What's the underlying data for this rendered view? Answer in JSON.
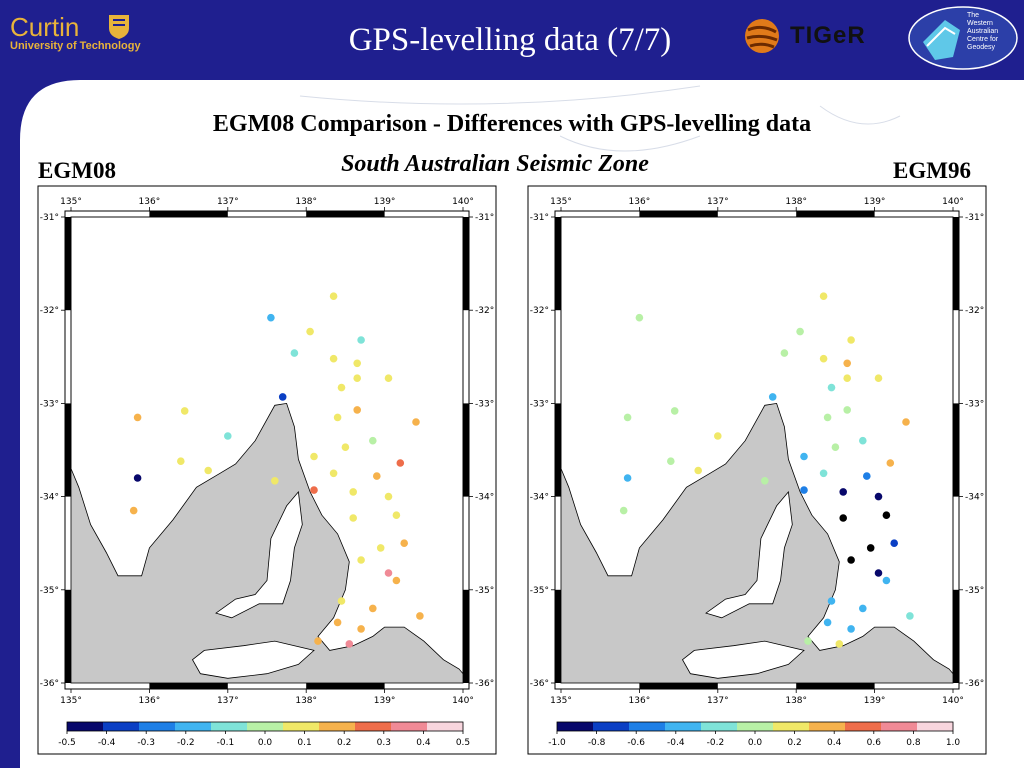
{
  "header": {
    "title": "GPS-levelling data (7/7)",
    "curtin_logo": {
      "name": "Curtin",
      "tagline": "University of Technology"
    },
    "tiger_logo": {
      "name": "TIGeR"
    },
    "wacg_logo": {
      "text_lines": [
        "The",
        "Western",
        "Australian",
        "Centre for",
        "Geodesy"
      ]
    }
  },
  "slide": {
    "heading": "EGM08 Comparison - Differences with GPS-levelling data",
    "subheading": "South Australian Seismic Zone"
  },
  "maps": [
    {
      "label": "EGM08",
      "x_ticks": [
        "135°",
        "136°",
        "137°",
        "138°",
        "139°",
        "140°"
      ],
      "y_ticks": [
        "-31°",
        "-32°",
        "-33°",
        "-34°",
        "-35°",
        "-36°"
      ],
      "colorbar_labels": [
        "-0.5",
        "-0.4",
        "-0.3",
        "-0.2",
        "-0.1",
        "0.0",
        "0.1",
        "0.2",
        "0.3",
        "0.4",
        "0.5"
      ]
    },
    {
      "label": "EGM96",
      "x_ticks": [
        "135°",
        "136°",
        "137°",
        "138°",
        "139°",
        "140°"
      ],
      "y_ticks": [
        "-31°",
        "-32°",
        "-33°",
        "-34°",
        "-35°",
        "-36°"
      ],
      "colorbar_labels": [
        "-1.0",
        "-0.8",
        "-0.6",
        "-0.4",
        "-0.2",
        "0.0",
        "0.2",
        "0.4",
        "0.6",
        "0.8",
        "1.0"
      ]
    }
  ],
  "colors": {
    "header_bg": "#1f1f8f",
    "sea": "#c8c8c8",
    "land": "#ffffff",
    "colorbar": [
      "#08086b",
      "#0b3fc4",
      "#1e7fe6",
      "#40b4f0",
      "#7fe3d8",
      "#b8f0a6",
      "#f0e868",
      "#f6b24c",
      "#ee6d4a",
      "#f08a96",
      "#f8d6de"
    ]
  },
  "chart_data": [
    {
      "type": "scatter",
      "x_range": [
        135,
        140
      ],
      "y_range": [
        -36,
        -31
      ],
      "legend": "bottom colorbar",
      "points": [
        {
          "lon": 138.35,
          "lat": -31.85,
          "v": 0.08
        },
        {
          "lon": 137.55,
          "lat": -32.08,
          "v": -0.18
        },
        {
          "lon": 138.05,
          "lat": -32.23,
          "v": 0.1
        },
        {
          "lon": 138.7,
          "lat": -32.32,
          "v": -0.08
        },
        {
          "lon": 137.85,
          "lat": -32.46,
          "v": -0.08
        },
        {
          "lon": 138.35,
          "lat": -32.52,
          "v": 0.08
        },
        {
          "lon": 138.65,
          "lat": -32.57,
          "v": 0.05
        },
        {
          "lon": 138.65,
          "lat": -32.73,
          "v": 0.05
        },
        {
          "lon": 139.05,
          "lat": -32.73,
          "v": 0.05
        },
        {
          "lon": 138.45,
          "lat": -32.83,
          "v": 0.06
        },
        {
          "lon": 137.7,
          "lat": -32.93,
          "v": -0.35
        },
        {
          "lon": 138.65,
          "lat": -33.07,
          "v": 0.18
        },
        {
          "lon": 135.85,
          "lat": -33.15,
          "v": 0.14
        },
        {
          "lon": 136.45,
          "lat": -33.08,
          "v": 0.08
        },
        {
          "lon": 138.4,
          "lat": -33.15,
          "v": 0.08
        },
        {
          "lon": 139.4,
          "lat": -33.2,
          "v": 0.2
        },
        {
          "lon": 137.0,
          "lat": -33.35,
          "v": -0.05
        },
        {
          "lon": 138.85,
          "lat": -33.4,
          "v": -0.02
        },
        {
          "lon": 138.5,
          "lat": -33.47,
          "v": 0.05
        },
        {
          "lon": 138.1,
          "lat": -33.57,
          "v": 0.06
        },
        {
          "lon": 136.4,
          "lat": -33.62,
          "v": 0.1
        },
        {
          "lon": 139.2,
          "lat": -33.64,
          "v": 0.26
        },
        {
          "lon": 136.75,
          "lat": -33.72,
          "v": 0.13
        },
        {
          "lon": 138.35,
          "lat": -33.75,
          "v": 0.06
        },
        {
          "lon": 138.9,
          "lat": -33.78,
          "v": 0.16
        },
        {
          "lon": 135.85,
          "lat": -33.8,
          "v": -0.47
        },
        {
          "lon": 137.6,
          "lat": -33.83,
          "v": 0.1
        },
        {
          "lon": 138.1,
          "lat": -33.93,
          "v": 0.3
        },
        {
          "lon": 138.6,
          "lat": -33.95,
          "v": 0.05
        },
        {
          "lon": 139.05,
          "lat": -34.0,
          "v": 0.12
        },
        {
          "lon": 135.8,
          "lat": -34.15,
          "v": 0.17
        },
        {
          "lon": 139.15,
          "lat": -34.2,
          "v": 0.12
        },
        {
          "lon": 138.6,
          "lat": -34.23,
          "v": 0.06
        },
        {
          "lon": 139.25,
          "lat": -34.5,
          "v": 0.18
        },
        {
          "lon": 138.95,
          "lat": -34.55,
          "v": 0.12
        },
        {
          "lon": 138.7,
          "lat": -34.68,
          "v": 0.1
        },
        {
          "lon": 139.05,
          "lat": -34.82,
          "v": 0.34
        },
        {
          "lon": 139.15,
          "lat": -34.9,
          "v": 0.22
        },
        {
          "lon": 138.45,
          "lat": -35.12,
          "v": 0.1
        },
        {
          "lon": 138.85,
          "lat": -35.2,
          "v": 0.16
        },
        {
          "lon": 139.45,
          "lat": -35.28,
          "v": 0.2
        },
        {
          "lon": 138.4,
          "lat": -35.35,
          "v": 0.22
        },
        {
          "lon": 138.7,
          "lat": -35.42,
          "v": 0.14
        },
        {
          "lon": 138.15,
          "lat": -35.55,
          "v": 0.2
        },
        {
          "lon": 138.55,
          "lat": -35.58,
          "v": 0.35
        }
      ]
    },
    {
      "type": "scatter",
      "x_range": [
        135,
        140
      ],
      "y_range": [
        -36,
        -31
      ],
      "legend": "bottom colorbar",
      "points": [
        {
          "lon": 138.35,
          "lat": -31.85,
          "v": 0.1
        },
        {
          "lon": 136.0,
          "lat": -32.08,
          "v": 0.0
        },
        {
          "lon": 138.05,
          "lat": -32.23,
          "v": 0.0
        },
        {
          "lon": 138.7,
          "lat": -32.32,
          "v": 0.25
        },
        {
          "lon": 137.85,
          "lat": -32.46,
          "v": 0.0
        },
        {
          "lon": 138.35,
          "lat": -32.52,
          "v": 0.15
        },
        {
          "lon": 138.65,
          "lat": -32.57,
          "v": 0.35
        },
        {
          "lon": 138.65,
          "lat": -32.73,
          "v": 0.1
        },
        {
          "lon": 139.05,
          "lat": -32.73,
          "v": 0.25
        },
        {
          "lon": 138.45,
          "lat": -32.83,
          "v": -0.1
        },
        {
          "lon": 137.7,
          "lat": -32.93,
          "v": -0.3
        },
        {
          "lon": 138.65,
          "lat": -33.07,
          "v": 0.0
        },
        {
          "lon": 135.85,
          "lat": -33.15,
          "v": 0.0
        },
        {
          "lon": 136.45,
          "lat": -33.08,
          "v": 0.0
        },
        {
          "lon": 138.4,
          "lat": -33.15,
          "v": -0.05
        },
        {
          "lon": 139.4,
          "lat": -33.2,
          "v": 0.45
        },
        {
          "lon": 137.0,
          "lat": -33.35,
          "v": 0.25
        },
        {
          "lon": 138.85,
          "lat": -33.4,
          "v": -0.2
        },
        {
          "lon": 138.5,
          "lat": -33.47,
          "v": 0.0
        },
        {
          "lon": 138.1,
          "lat": -33.57,
          "v": -0.4
        },
        {
          "lon": 136.4,
          "lat": -33.62,
          "v": 0.0
        },
        {
          "lon": 139.2,
          "lat": -33.64,
          "v": 0.3
        },
        {
          "lon": 136.75,
          "lat": -33.72,
          "v": 0.1
        },
        {
          "lon": 138.35,
          "lat": -33.75,
          "v": -0.1
        },
        {
          "lon": 138.9,
          "lat": -33.78,
          "v": -0.5
        },
        {
          "lon": 135.85,
          "lat": -33.8,
          "v": -0.4
        },
        {
          "lon": 137.6,
          "lat": -33.83,
          "v": 0.05
        },
        {
          "lon": 138.1,
          "lat": -33.93,
          "v": -0.5
        },
        {
          "lon": 138.6,
          "lat": -33.95,
          "v": -0.9
        },
        {
          "lon": 139.05,
          "lat": -34.0,
          "v": -0.85
        },
        {
          "lon": 135.8,
          "lat": -34.15,
          "v": 0.05
        },
        {
          "lon": 139.15,
          "lat": -34.2,
          "v": -1.2
        },
        {
          "lon": 138.6,
          "lat": -34.23,
          "v": -1.2
        },
        {
          "lon": 139.25,
          "lat": -34.5,
          "v": -0.7
        },
        {
          "lon": 138.95,
          "lat": -34.55,
          "v": -1.2
        },
        {
          "lon": 138.7,
          "lat": -34.68,
          "v": -1.2
        },
        {
          "lon": 139.05,
          "lat": -34.82,
          "v": -0.85
        },
        {
          "lon": 139.15,
          "lat": -34.9,
          "v": -0.35
        },
        {
          "lon": 138.45,
          "lat": -35.12,
          "v": -0.45
        },
        {
          "lon": 138.85,
          "lat": -35.2,
          "v": -0.35
        },
        {
          "lon": 139.45,
          "lat": -35.28,
          "v": -0.1
        },
        {
          "lon": 138.4,
          "lat": -35.35,
          "v": -0.4
        },
        {
          "lon": 138.7,
          "lat": -35.42,
          "v": -0.3
        },
        {
          "lon": 138.15,
          "lat": -35.55,
          "v": -0.05
        },
        {
          "lon": 138.55,
          "lat": -35.58,
          "v": 0.15
        }
      ]
    }
  ]
}
